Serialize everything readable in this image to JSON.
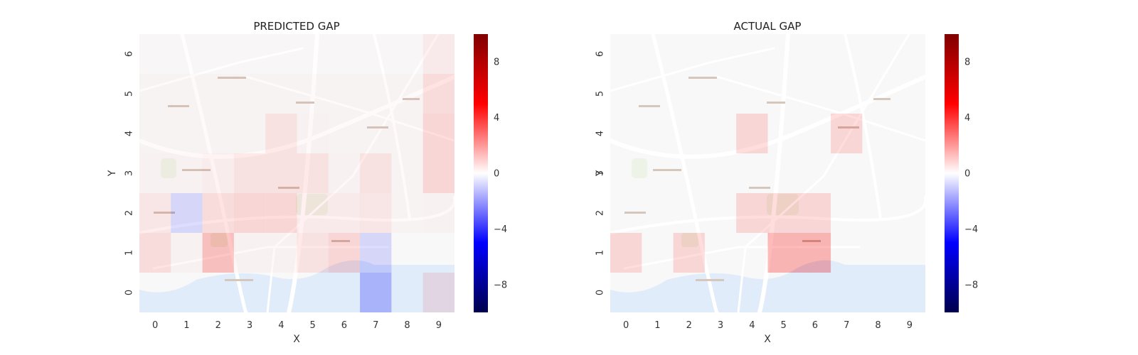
{
  "figure": {
    "colormap": {
      "name": "seismic",
      "min_color": "#00004c",
      "low_color": "#0000ff",
      "mid_color": "#ffffff",
      "high_color": "#ff0000",
      "max_color": "#800000"
    },
    "map_colors": {
      "land": "#f2f2f2",
      "road": "#ffffff",
      "park": "#dfe9d3",
      "water": "#c9dcf6",
      "label": "#b59a88"
    }
  },
  "chart_data": [
    {
      "type": "heatmap",
      "title": "PREDICTED GAP",
      "xlabel": "X",
      "ylabel": "Y",
      "x_ticks": [
        "0",
        "1",
        "2",
        "3",
        "4",
        "5",
        "6",
        "7",
        "8",
        "9"
      ],
      "y_ticks": [
        "0",
        "1",
        "2",
        "3",
        "4",
        "5",
        "6"
      ],
      "colorbar": {
        "vmin": -10,
        "vmax": 10,
        "ticks": [
          -8,
          -4,
          0,
          4,
          8
        ]
      },
      "background": "street map",
      "grid": false,
      "rows_y_bottom_to_top": [
        [
          0,
          0,
          0,
          0,
          0,
          0,
          0,
          -2.5,
          0,
          1.0
        ],
        [
          1.2,
          0.3,
          2.5,
          0.3,
          0.3,
          1.0,
          1.5,
          -1.5,
          0,
          0
        ],
        [
          0.8,
          -1.5,
          1.2,
          1.5,
          1.5,
          0.6,
          0.6,
          0.8,
          0.2,
          0.3
        ],
        [
          0.3,
          0.3,
          0.5,
          1.0,
          1.0,
          1.0,
          0.3,
          1.0,
          0.2,
          1.5
        ],
        [
          0.2,
          0.2,
          0.2,
          0.2,
          1.0,
          0.3,
          0.2,
          0.2,
          0.2,
          1.5
        ],
        [
          0.2,
          0.2,
          0.2,
          0.2,
          0.2,
          0.2,
          0.2,
          0.2,
          0.2,
          1.2
        ],
        [
          0.1,
          0.1,
          0.1,
          0.1,
          0.1,
          0.1,
          0.1,
          0.1,
          0.1,
          0.6
        ]
      ]
    },
    {
      "type": "heatmap",
      "title": "ACTUAL GAP",
      "xlabel": "X",
      "ylabel": "Y",
      "x_ticks": [
        "0",
        "1",
        "2",
        "3",
        "4",
        "5",
        "6",
        "7",
        "8",
        "9"
      ],
      "y_ticks": [
        "0",
        "1",
        "2",
        "3",
        "4",
        "5",
        "6"
      ],
      "colorbar": {
        "vmin": -10,
        "vmax": 10,
        "ticks": [
          -8,
          -4,
          0,
          4,
          8
        ]
      },
      "background": "street map",
      "grid": false,
      "rows_y_bottom_to_top": [
        [
          0,
          0,
          0,
          0,
          0,
          0,
          0,
          0,
          0,
          0
        ],
        [
          1.5,
          0,
          1.5,
          0,
          0,
          3.0,
          3.0,
          0,
          0,
          0
        ],
        [
          0,
          0,
          0,
          0,
          1.5,
          1.5,
          1.5,
          0,
          0,
          0
        ],
        [
          0,
          0,
          0,
          0,
          0,
          0,
          0,
          0,
          0,
          0
        ],
        [
          0,
          0,
          0,
          0,
          1.5,
          0,
          0,
          1.5,
          0,
          0
        ],
        [
          0,
          0,
          0,
          0,
          0,
          0,
          0,
          0,
          0,
          0
        ],
        [
          0,
          0,
          0,
          0,
          0,
          0,
          0,
          0,
          0,
          0
        ]
      ]
    }
  ]
}
